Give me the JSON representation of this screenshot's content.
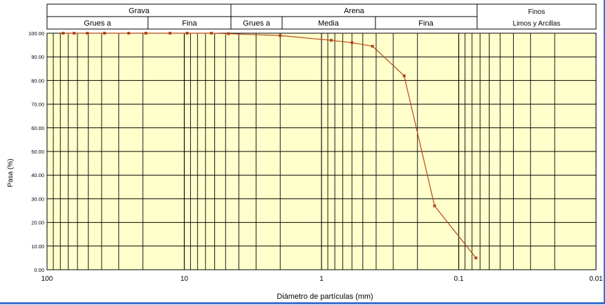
{
  "chart_data": {
    "type": "line",
    "title": "",
    "xlabel": "Diámetro de partículas (mm)",
    "ylabel": "Pasa (%)",
    "x_scale": "log",
    "x_reversed": true,
    "xlim": [
      100,
      0.01
    ],
    "ylim": [
      0,
      100
    ],
    "grid": true,
    "legend": "none",
    "x_tick_labels": [
      "100",
      "10",
      "1",
      "0.1",
      "0.01"
    ],
    "x_tick_values": [
      100,
      10,
      1,
      0.1,
      0.01
    ],
    "y_tick_labels": [
      "0.00",
      "10.00",
      "20.00",
      "30.00",
      "40.00",
      "50.00",
      "60.00",
      "70.00",
      "80.00",
      "90.00",
      "100.00"
    ],
    "y_tick_values": [
      0,
      10,
      20,
      30,
      40,
      50,
      60,
      70,
      80,
      90,
      100
    ],
    "series": [
      {
        "x": [
          76.2,
          63.5,
          50.8,
          38.1,
          25.4,
          19.05,
          12.7,
          9.525,
          6.35,
          4.76,
          2.0,
          0.85,
          0.6,
          0.425,
          0.25,
          0.15,
          0.075
        ],
        "y": [
          100,
          100,
          100,
          100,
          100,
          100,
          100,
          100,
          100,
          99.8,
          99.0,
          97.0,
          96.0,
          94.5,
          82.0,
          27.0,
          5.0
        ]
      }
    ],
    "classification": {
      "groups": [
        {
          "label": "Grava",
          "from": 100,
          "to": 4.76
        },
        {
          "label": "Arena",
          "from": 4.76,
          "to": 0.075
        },
        {
          "label": "Finos",
          "from": 0.075,
          "to": 0.01
        }
      ],
      "subgroups": [
        {
          "label": "Gruesa",
          "from": 100,
          "to": 19.05
        },
        {
          "label": "Fina",
          "from": 19.05,
          "to": 4.76
        },
        {
          "label": "Gruesa",
          "from": 4.76,
          "to": 2.0
        },
        {
          "label": "Media",
          "from": 2.0,
          "to": 0.425
        },
        {
          "label": "Fina",
          "from": 0.425,
          "to": 0.075
        },
        {
          "label": "Limos y Arcillas",
          "from": 0.075,
          "to": 0.01
        }
      ],
      "header_display": [
        "Grava",
        "Arena",
        "Finos",
        "Grues a",
        "Fina",
        "Grues a",
        "Media",
        "Fina",
        "Limos y Arcillas"
      ]
    }
  },
  "colors": {
    "plot_background": "#ffffcc",
    "curve": "#b5451b",
    "grid": "#000000",
    "frame_accent": "#3a6fcf"
  }
}
